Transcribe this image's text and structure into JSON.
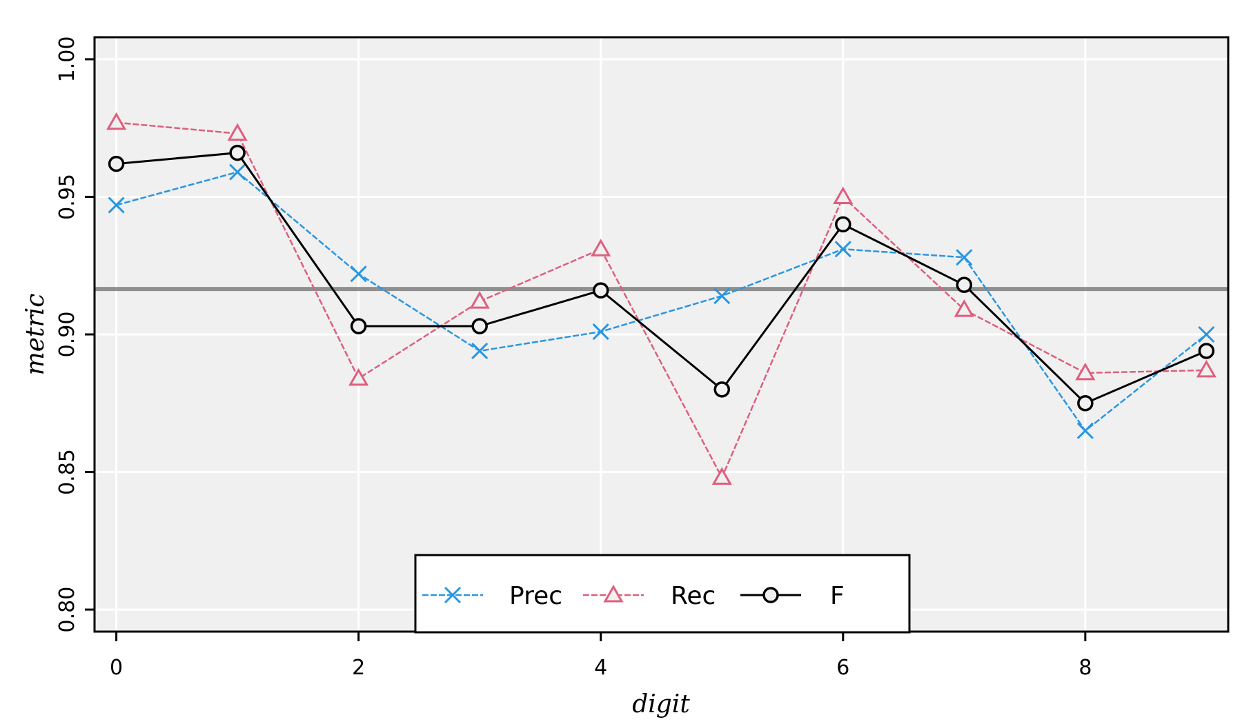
{
  "chart_data": {
    "type": "line",
    "title": "",
    "xlabel": "digit",
    "ylabel": "metric",
    "x": [
      0,
      1,
      2,
      3,
      4,
      5,
      6,
      7,
      8,
      9
    ],
    "xlim": [
      -0.18,
      9.18
    ],
    "ylim": [
      0.792,
      1.008
    ],
    "xticks": [
      0,
      2,
      4,
      6,
      8
    ],
    "xtick_labels": [
      "0",
      "2",
      "4",
      "6",
      "8"
    ],
    "yticks": [
      0.8,
      0.85,
      0.9,
      0.95,
      1.0
    ],
    "ytick_labels": [
      "0.80",
      "0.85",
      "0.90",
      "0.95",
      "1.00"
    ],
    "grid": true,
    "reference_line": {
      "y": 0.9165,
      "color": "#7f7f7f"
    },
    "legend": {
      "placement": "bottom-center",
      "columns": 3
    },
    "series": [
      {
        "name": "Prec",
        "marker": "x",
        "line": "dashed",
        "color": "#2996e0",
        "values": [
          0.947,
          0.959,
          0.922,
          0.894,
          0.901,
          0.914,
          0.931,
          0.928,
          0.865,
          0.9
        ]
      },
      {
        "name": "Rec",
        "marker": "triangle",
        "line": "dashed",
        "color": "#df5e7d",
        "values": [
          0.977,
          0.973,
          0.884,
          0.912,
          0.931,
          0.848,
          0.95,
          0.909,
          0.886,
          0.887
        ]
      },
      {
        "name": "F",
        "marker": "circle",
        "line": "solid",
        "color": "#000000",
        "values": [
          0.962,
          0.966,
          0.903,
          0.903,
          0.916,
          0.88,
          0.94,
          0.918,
          0.875,
          0.894
        ]
      }
    ]
  }
}
